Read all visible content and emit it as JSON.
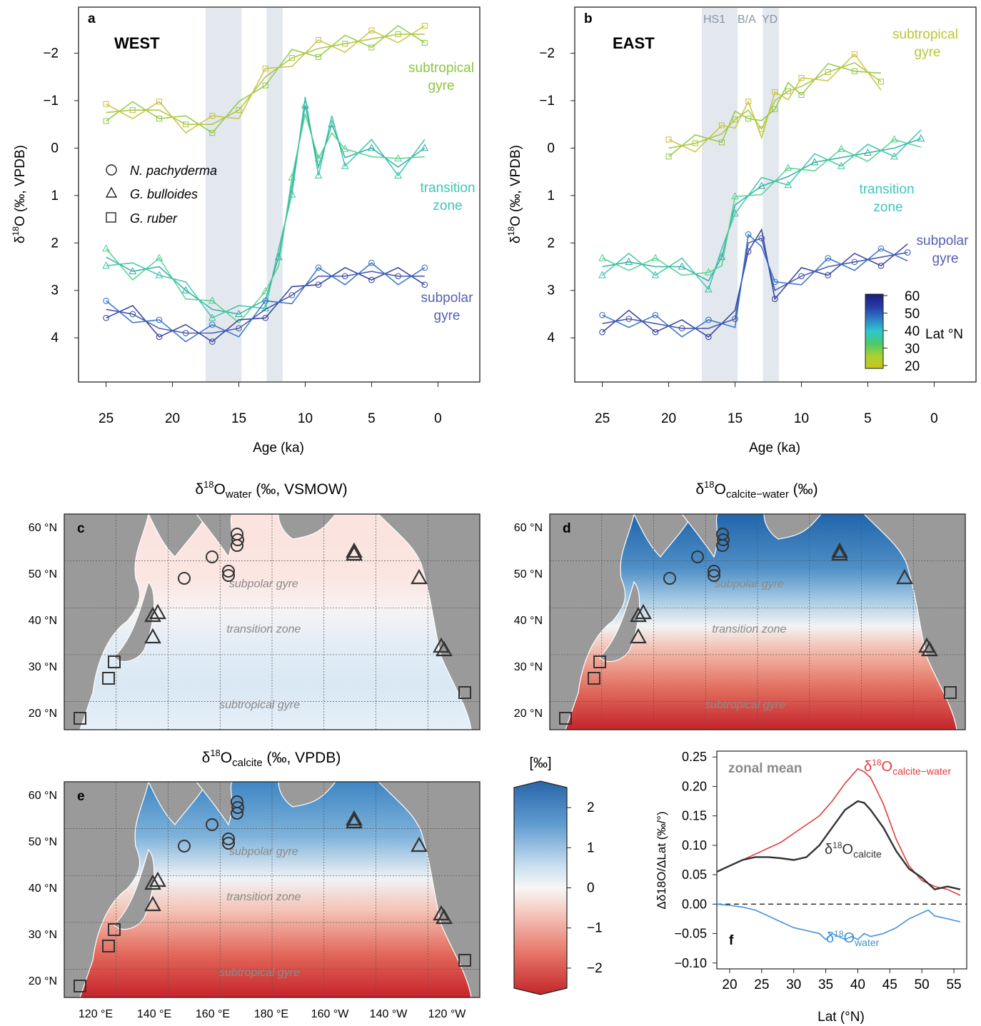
{
  "panels": {
    "a": {
      "letter": "a",
      "region": "WEST"
    },
    "b": {
      "letter": "b",
      "region": "EAST"
    },
    "c": {
      "letter": "c"
    },
    "d": {
      "letter": "d"
    },
    "e": {
      "letter": "e"
    },
    "f": {
      "letter": "f",
      "label": "zonal mean"
    }
  },
  "time_axes": {
    "ylabel_prefix": "δ",
    "ylabel_sup": "18",
    "ylabel_main": "O (‰, VPDB)",
    "xlabel": "Age (ka)",
    "xticks": [
      25,
      20,
      15,
      10,
      5,
      0
    ],
    "yticks": [
      -2,
      -1,
      0,
      1,
      2,
      3,
      4
    ],
    "xlim": [
      26,
      -1
    ],
    "ylim": [
      -2.7,
      4.75
    ],
    "events": [
      {
        "label": "HS1",
        "from": 17.5,
        "to": 14.8,
        "color": "#e3e8ee"
      },
      {
        "label": "B/A",
        "from": null,
        "to": null,
        "color": ""
      },
      {
        "label": "YD",
        "from": 12.9,
        "to": 11.7,
        "color": "#e3e8ee"
      }
    ]
  },
  "legend": {
    "items": [
      {
        "symbol": "circle",
        "label": "N. pachyderma"
      },
      {
        "symbol": "triangle",
        "label": "G. bulloides"
      },
      {
        "symbol": "square",
        "label": "G. ruber"
      }
    ]
  },
  "zone_labels_a": [
    {
      "line1": "subtropical",
      "line2": "gyre",
      "color": "#8bc63e"
    },
    {
      "line1": "transition",
      "line2": "zone",
      "color": "#3ec7b3"
    },
    {
      "line1": "subpolar",
      "line2": "gyre",
      "color": "#5560b0"
    }
  ],
  "zone_labels_b": [
    {
      "line1": "subtropical",
      "line2": "gyre",
      "color": "#b9c833"
    },
    {
      "line1": "transition",
      "line2": "zone",
      "color": "#3ec7c0"
    },
    {
      "line1": "subpolar",
      "line2": "gyre",
      "color": "#5560b0"
    }
  ],
  "lat_colorbar": {
    "ticks": [
      60,
      50,
      40,
      30,
      20
    ],
    "title": "Lat °N",
    "stops": [
      "#1b1d78",
      "#263aa6",
      "#2f7ec4",
      "#2ec8cf",
      "#4bc96a",
      "#a8d232",
      "#c9c41b"
    ]
  },
  "map_titles": {
    "c": {
      "pre": "δ",
      "sup": "18",
      "main": "O",
      "sub": "water",
      "post": " (‰, VSMOW)"
    },
    "d": {
      "pre": "δ",
      "sup": "18",
      "main": "O",
      "sub": "calcite−water",
      "post": " (‰)"
    },
    "e": {
      "pre": "δ",
      "sup": "18",
      "main": "O",
      "sub": "calcite",
      "post": " (‰, VPDB)"
    }
  },
  "map_axes": {
    "lat_ticks": [
      "60 °N",
      "50 °N",
      "40 °N",
      "30 °N",
      "20 °N"
    ],
    "lon_ticks": [
      "120 °E",
      "140 °E",
      "160 °E",
      "180 °E",
      "160 °W",
      "140 °W",
      "120 °W"
    ],
    "region_labels": [
      "subpolar gyre",
      "transition zone",
      "subtropical gyre"
    ]
  },
  "diverging_colorbar": {
    "unit": "[‰]",
    "ticks": [
      2,
      1,
      0,
      -1,
      -2
    ],
    "range": [
      -2.5,
      2.5
    ]
  },
  "chart_data": [
    {
      "panel": "a",
      "type": "line",
      "x_name": "Age (ka)",
      "y_name": "δ18O (‰, VPDB)",
      "y_inverted": true,
      "series": [
        {
          "group": "subtropical gyre",
          "x": [
            25,
            23,
            21,
            19,
            17,
            15,
            13,
            11,
            9,
            7,
            5,
            3,
            1
          ],
          "y": [
            -0.75,
            -0.8,
            -0.8,
            -0.5,
            -0.5,
            -0.8,
            -1.5,
            -1.9,
            -2.1,
            -2.2,
            -2.3,
            -2.4,
            -2.4
          ]
        },
        {
          "group": "transition zone",
          "x": [
            25,
            23,
            21,
            19,
            17,
            15,
            13,
            12,
            11,
            10,
            9,
            8,
            7,
            5,
            3,
            1
          ],
          "y": [
            2.3,
            2.6,
            2.5,
            3.0,
            3.4,
            3.5,
            3.2,
            2.3,
            0.8,
            -0.9,
            0.4,
            -0.5,
            0.2,
            0.0,
            0.4,
            0.0
          ]
        },
        {
          "group": "subpolar gyre",
          "x": [
            25,
            23,
            21,
            19,
            17,
            15,
            13,
            11,
            9,
            7,
            5,
            3,
            1
          ],
          "y": [
            3.4,
            3.5,
            3.8,
            3.9,
            3.9,
            3.8,
            3.4,
            3.1,
            2.7,
            2.7,
            2.6,
            2.7,
            2.7
          ]
        }
      ]
    },
    {
      "panel": "b",
      "type": "line",
      "x_name": "Age (ka)",
      "y_name": "δ18O (‰, VPDB)",
      "y_inverted": true,
      "series": [
        {
          "group": "subtropical gyre",
          "x": [
            20,
            18,
            16,
            15,
            14,
            13,
            12,
            11,
            10,
            8,
            6,
            4
          ],
          "y": [
            0.0,
            -0.1,
            -0.3,
            -0.6,
            -0.8,
            -0.4,
            -1.0,
            -1.2,
            -1.3,
            -1.6,
            -1.8,
            -1.4
          ]
        },
        {
          "group": "transition zone",
          "x": [
            25,
            23,
            21,
            19,
            17,
            16,
            15,
            13,
            11,
            9,
            7,
            5,
            3,
            1
          ],
          "y": [
            2.5,
            2.4,
            2.5,
            2.5,
            2.8,
            2.3,
            1.2,
            0.8,
            0.6,
            0.3,
            0.2,
            0.1,
            0.0,
            -0.2
          ]
        },
        {
          "group": "subpolar gyre",
          "x": [
            25,
            23,
            21,
            19,
            17,
            15,
            14,
            13,
            12,
            10,
            8,
            6,
            4,
            2
          ],
          "y": [
            3.7,
            3.6,
            3.7,
            3.8,
            3.8,
            3.6,
            2.0,
            1.9,
            3.0,
            2.7,
            2.5,
            2.4,
            2.3,
            2.2
          ]
        }
      ]
    },
    {
      "panel": "f",
      "type": "line",
      "xlabel": "Lat (°N)",
      "ylabel": "Δδ18O/ΔLat (‰/°)",
      "xlim": [
        18,
        57
      ],
      "ylim": [
        -0.11,
        0.26
      ],
      "xticks": [
        20,
        25,
        30,
        35,
        40,
        45,
        50,
        55
      ],
      "yticks": [
        0.25,
        0.2,
        0.15,
        0.1,
        0.05,
        0.0,
        -0.05,
        -0.1
      ],
      "series": [
        {
          "name": "δ18Ocalcite−water",
          "color": "#e03c3c",
          "x": [
            18,
            20,
            22,
            24,
            26,
            28,
            30,
            32,
            34,
            36,
            38,
            40,
            41,
            42,
            44,
            46,
            48,
            50,
            52,
            54,
            56
          ],
          "y": [
            0.055,
            0.065,
            0.075,
            0.085,
            0.095,
            0.105,
            0.12,
            0.135,
            0.15,
            0.175,
            0.205,
            0.23,
            0.225,
            0.215,
            0.17,
            0.11,
            0.065,
            0.04,
            0.03,
            0.025,
            0.015
          ]
        },
        {
          "name": "δ18Ocalcite",
          "color": "#333333",
          "x": [
            18,
            20,
            22,
            24,
            26,
            28,
            30,
            32,
            34,
            36,
            38,
            40,
            41,
            42,
            44,
            46,
            48,
            50,
            52,
            54,
            56
          ],
          "y": [
            0.055,
            0.065,
            0.075,
            0.08,
            0.08,
            0.078,
            0.075,
            0.08,
            0.1,
            0.13,
            0.16,
            0.175,
            0.172,
            0.16,
            0.13,
            0.09,
            0.06,
            0.045,
            0.025,
            0.03,
            0.025
          ]
        },
        {
          "name": "δ18Owater",
          "color": "#3f8fd8",
          "x": [
            18,
            20,
            22,
            24,
            26,
            28,
            30,
            32,
            34,
            35,
            36,
            37,
            38,
            39,
            40,
            41,
            42,
            44,
            46,
            48,
            50,
            51,
            52,
            54,
            56
          ],
          "y": [
            0.0,
            -0.002,
            -0.005,
            -0.01,
            -0.02,
            -0.03,
            -0.04,
            -0.045,
            -0.05,
            -0.06,
            -0.05,
            -0.055,
            -0.06,
            -0.055,
            -0.06,
            -0.05,
            -0.055,
            -0.05,
            -0.04,
            -0.025,
            -0.015,
            -0.01,
            -0.02,
            -0.025,
            -0.03
          ]
        }
      ]
    }
  ]
}
